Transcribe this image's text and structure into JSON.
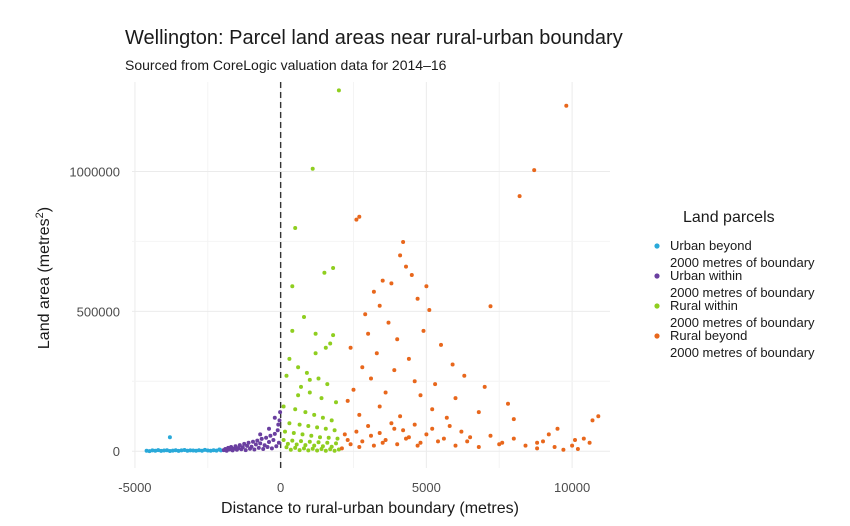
{
  "chart_data": {
    "type": "scatter",
    "title": "Wellington: Parcel land areas near rural-urban boundary",
    "subtitle": "Sourced from CoreLogic valuation data for 2014–16",
    "xlabel": "Distance to rural-urban boundary (metres)",
    "ylabel_main": "Land area (metres",
    "ylabel_sup": "2",
    "ylabel_end": ")",
    "xlim": [
      -5100,
      11300
    ],
    "ylim": [
      -60000,
      1320000
    ],
    "x_ticks": [
      -5000,
      0,
      5000,
      10000
    ],
    "x_tick_labels": [
      "-5000",
      "0",
      "5000",
      "10000"
    ],
    "y_ticks": [
      0,
      500000,
      1000000
    ],
    "y_tick_labels": [
      "0",
      "500000",
      "1000000"
    ],
    "grid": true,
    "boundary_line_x": 0,
    "legend_position": "right",
    "legend": {
      "title": "Land parcels",
      "entries": [
        {
          "line1": "Urban beyond",
          "line2": "2000 metres of boundary"
        },
        {
          "line1": "Urban within",
          "line2": "2000 metres of boundary"
        },
        {
          "line1": "Rural within",
          "line2": "2000 metres of boundary"
        },
        {
          "line1": "Rural beyond",
          "line2": "2000 metres of boundary"
        }
      ]
    },
    "series": [
      {
        "color": "#29a9d9",
        "points": [
          [
            -4600,
            2000
          ],
          [
            -4500,
            500
          ],
          [
            -4400,
            3000
          ],
          [
            -4300,
            1500
          ],
          [
            -4200,
            4000
          ],
          [
            -4100,
            1000
          ],
          [
            -4000,
            2500
          ],
          [
            -3900,
            3500
          ],
          [
            -3800,
            800
          ],
          [
            -3700,
            2200
          ],
          [
            -3600,
            3200
          ],
          [
            -3500,
            1200
          ],
          [
            -3400,
            2800
          ],
          [
            -3300,
            4200
          ],
          [
            -3200,
            1800
          ],
          [
            -3100,
            3000
          ],
          [
            -3000,
            2400
          ],
          [
            -2900,
            1600
          ],
          [
            -2800,
            3600
          ],
          [
            -2700,
            2000
          ],
          [
            -2600,
            4800
          ],
          [
            -2500,
            2600
          ],
          [
            -2400,
            1400
          ],
          [
            -2300,
            3400
          ],
          [
            -2200,
            2200
          ],
          [
            -2100,
            6000
          ],
          [
            -2050,
            3000
          ],
          [
            -3800,
            50000
          ]
        ]
      },
      {
        "color": "#6a3fa0",
        "points": [
          [
            -1950,
            4000
          ],
          [
            -1900,
            8000
          ],
          [
            -1850,
            2000
          ],
          [
            -1800,
            12000
          ],
          [
            -1750,
            6000
          ],
          [
            -1700,
            15000
          ],
          [
            -1650,
            3000
          ],
          [
            -1600,
            9000
          ],
          [
            -1550,
            18000
          ],
          [
            -1500,
            5000
          ],
          [
            -1450,
            11000
          ],
          [
            -1400,
            22000
          ],
          [
            -1350,
            7000
          ],
          [
            -1300,
            14000
          ],
          [
            -1250,
            26000
          ],
          [
            -1200,
            4000
          ],
          [
            -1150,
            19000
          ],
          [
            -1100,
            30000
          ],
          [
            -1050,
            9000
          ],
          [
            -1000,
            16000
          ],
          [
            -950,
            34000
          ],
          [
            -900,
            6000
          ],
          [
            -850,
            24000
          ],
          [
            -800,
            38000
          ],
          [
            -750,
            12000
          ],
          [
            -700,
            28000
          ],
          [
            -650,
            44000
          ],
          [
            -600,
            8000
          ],
          [
            -550,
            21000
          ],
          [
            -500,
            48000
          ],
          [
            -450,
            15000
          ],
          [
            -400,
            33000
          ],
          [
            -350,
            55000
          ],
          [
            -300,
            10000
          ],
          [
            -250,
            40000
          ],
          [
            -200,
            62000
          ],
          [
            -150,
            18000
          ],
          [
            -100,
            75000
          ],
          [
            -80,
            95000
          ],
          [
            -60,
            30000
          ],
          [
            -40,
            110000
          ],
          [
            -20,
            140000
          ],
          [
            -700,
            60000
          ],
          [
            -400,
            80000
          ],
          [
            -200,
            120000
          ]
        ]
      },
      {
        "color": "#8fce1f",
        "points": [
          [
            2000,
            1290000
          ],
          [
            1100,
            1010000
          ],
          [
            1500,
            638000
          ],
          [
            1800,
            655000
          ],
          [
            500,
            798000
          ],
          [
            400,
            590000
          ],
          [
            800,
            480000
          ],
          [
            1200,
            420000
          ],
          [
            1700,
            385000
          ],
          [
            1800,
            415000
          ],
          [
            1550,
            370000
          ],
          [
            300,
            330000
          ],
          [
            600,
            300000
          ],
          [
            900,
            280000
          ],
          [
            1300,
            260000
          ],
          [
            1600,
            240000
          ],
          [
            200,
            270000
          ],
          [
            700,
            230000
          ],
          [
            1000,
            210000
          ],
          [
            1400,
            190000
          ],
          [
            1900,
            175000
          ],
          [
            100,
            160000
          ],
          [
            500,
            150000
          ],
          [
            850,
            140000
          ],
          [
            1150,
            130000
          ],
          [
            1450,
            120000
          ],
          [
            1750,
            110000
          ],
          [
            300,
            100000
          ],
          [
            650,
            95000
          ],
          [
            950,
            90000
          ],
          [
            1250,
            85000
          ],
          [
            1550,
            80000
          ],
          [
            1850,
            75000
          ],
          [
            150,
            70000
          ],
          [
            450,
            65000
          ],
          [
            750,
            60000
          ],
          [
            1050,
            55000
          ],
          [
            1350,
            50000
          ],
          [
            1650,
            48000
          ],
          [
            1950,
            45000
          ],
          [
            100,
            40000
          ],
          [
            400,
            38000
          ],
          [
            700,
            36000
          ],
          [
            1000,
            34000
          ],
          [
            1300,
            32000
          ],
          [
            1600,
            30000
          ],
          [
            1900,
            28000
          ],
          [
            250,
            26000
          ],
          [
            550,
            24000
          ],
          [
            850,
            22000
          ],
          [
            1150,
            20000
          ],
          [
            1450,
            18000
          ],
          [
            1750,
            16000
          ],
          [
            200,
            14000
          ],
          [
            500,
            12000
          ],
          [
            800,
            10000
          ],
          [
            1100,
            9000
          ],
          [
            1400,
            8000
          ],
          [
            1700,
            7000
          ],
          [
            2000,
            6000
          ],
          [
            350,
            5000
          ],
          [
            650,
            4000
          ],
          [
            950,
            3000
          ],
          [
            1250,
            2500
          ],
          [
            1550,
            2000
          ],
          [
            1850,
            1500
          ],
          [
            600,
            200000
          ],
          [
            1200,
            350000
          ],
          [
            400,
            430000
          ],
          [
            1000,
            255000
          ]
        ]
      },
      {
        "color": "#e8671c",
        "points": [
          [
            9800,
            1235000
          ],
          [
            8700,
            1005000
          ],
          [
            8200,
            912000
          ],
          [
            2600,
            828000
          ],
          [
            2700,
            838000
          ],
          [
            4200,
            748000
          ],
          [
            4100,
            700000
          ],
          [
            4300,
            660000
          ],
          [
            4500,
            630000
          ],
          [
            3500,
            610000
          ],
          [
            5000,
            590000
          ],
          [
            3200,
            570000
          ],
          [
            3800,
            600000
          ],
          [
            4700,
            545000
          ],
          [
            3400,
            520000
          ],
          [
            7200,
            518000
          ],
          [
            2900,
            490000
          ],
          [
            5100,
            505000
          ],
          [
            3700,
            460000
          ],
          [
            4900,
            430000
          ],
          [
            3000,
            420000
          ],
          [
            4000,
            400000
          ],
          [
            5500,
            380000
          ],
          [
            2400,
            370000
          ],
          [
            3300,
            350000
          ],
          [
            4400,
            330000
          ],
          [
            5900,
            310000
          ],
          [
            2800,
            300000
          ],
          [
            3900,
            290000
          ],
          [
            6300,
            270000
          ],
          [
            3100,
            260000
          ],
          [
            4600,
            250000
          ],
          [
            5300,
            240000
          ],
          [
            7000,
            230000
          ],
          [
            2500,
            220000
          ],
          [
            3600,
            210000
          ],
          [
            4800,
            200000
          ],
          [
            6000,
            190000
          ],
          [
            2300,
            180000
          ],
          [
            7800,
            170000
          ],
          [
            3400,
            160000
          ],
          [
            5200,
            150000
          ],
          [
            6800,
            140000
          ],
          [
            2700,
            130000
          ],
          [
            4100,
            125000
          ],
          [
            5700,
            120000
          ],
          [
            8000,
            115000
          ],
          [
            10900,
            125000
          ],
          [
            10700,
            110000
          ],
          [
            9500,
            80000
          ],
          [
            9200,
            60000
          ],
          [
            10400,
            45000
          ],
          [
            10100,
            40000
          ],
          [
            8800,
            30000
          ],
          [
            7500,
            25000
          ],
          [
            6500,
            50000
          ],
          [
            6200,
            70000
          ],
          [
            5800,
            90000
          ],
          [
            5400,
            35000
          ],
          [
            5000,
            60000
          ],
          [
            4700,
            20000
          ],
          [
            4300,
            45000
          ],
          [
            3900,
            80000
          ],
          [
            3500,
            30000
          ],
          [
            3100,
            55000
          ],
          [
            2700,
            15000
          ],
          [
            2300,
            40000
          ],
          [
            2100,
            10000
          ],
          [
            2200,
            60000
          ],
          [
            2400,
            25000
          ],
          [
            2600,
            70000
          ],
          [
            2800,
            35000
          ],
          [
            3000,
            90000
          ],
          [
            3200,
            20000
          ],
          [
            3400,
            65000
          ],
          [
            3600,
            40000
          ],
          [
            3800,
            100000
          ],
          [
            4000,
            25000
          ],
          [
            4200,
            75000
          ],
          [
            4400,
            50000
          ],
          [
            4600,
            95000
          ],
          [
            4800,
            30000
          ],
          [
            5200,
            80000
          ],
          [
            5600,
            45000
          ],
          [
            6000,
            20000
          ],
          [
            6400,
            35000
          ],
          [
            6800,
            15000
          ],
          [
            7200,
            55000
          ],
          [
            7600,
            30000
          ],
          [
            8000,
            45000
          ],
          [
            8400,
            20000
          ],
          [
            8800,
            10000
          ],
          [
            9000,
            35000
          ],
          [
            9400,
            15000
          ],
          [
            9700,
            5000
          ],
          [
            10000,
            20000
          ],
          [
            10200,
            8000
          ],
          [
            10600,
            30000
          ]
        ]
      }
    ]
  }
}
